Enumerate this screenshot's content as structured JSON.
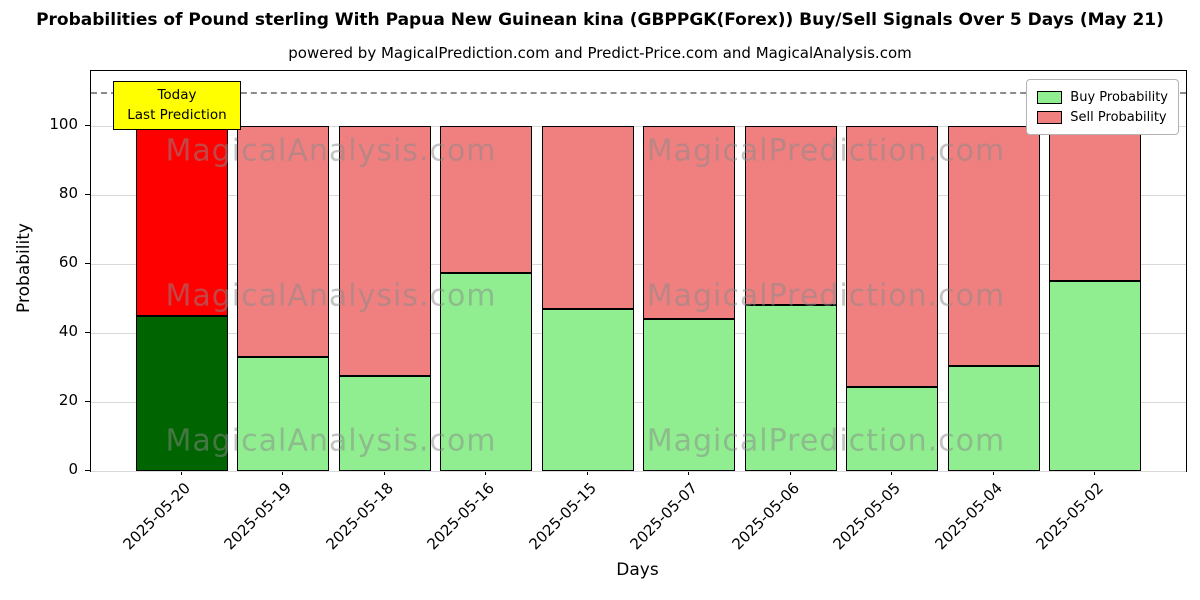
{
  "title": "Probabilities of Pound sterling With Papua New Guinean kina (GBPPGK(Forex)) Buy/Sell Signals Over 5 Days (May 21)",
  "subtitle": "powered by MagicalPrediction.com and Predict-Price.com and MagicalAnalysis.com",
  "chart_data": {
    "type": "bar",
    "stacked": true,
    "title": "Probabilities of Pound sterling With Papua New Guinean kina (GBPPGK(Forex)) Buy/Sell Signals Over 5 Days (May 21)",
    "xlabel": "Days",
    "ylabel": "Probability",
    "categories": [
      "2025-05-20",
      "2025-05-19",
      "2025-05-18",
      "2025-05-16",
      "2025-05-15",
      "2025-05-07",
      "2025-05-06",
      "2025-05-05",
      "2025-05-04",
      "2025-05-02"
    ],
    "series": [
      {
        "name": "Buy Probability",
        "values": [
          45,
          33,
          27.5,
          57.5,
          47,
          44,
          48,
          24.5,
          30.5,
          55
        ],
        "colors": [
          "#006400",
          "#90ee90",
          "#90ee90",
          "#90ee90",
          "#90ee90",
          "#90ee90",
          "#90ee90",
          "#90ee90",
          "#90ee90",
          "#90ee90"
        ]
      },
      {
        "name": "Sell Probability",
        "values": [
          55,
          67,
          72.5,
          42.5,
          53,
          56,
          52,
          75.5,
          69.5,
          45
        ],
        "colors": [
          "#ff0000",
          "#f08080",
          "#f08080",
          "#f08080",
          "#f08080",
          "#f08080",
          "#f08080",
          "#f08080",
          "#f08080",
          "#f08080"
        ]
      }
    ],
    "yticks": [
      0,
      20,
      40,
      60,
      80,
      100
    ],
    "ylim": [
      0,
      116
    ],
    "dashed_line_y": 110,
    "grid": true,
    "legend_position": "upper right",
    "legend": [
      {
        "label": "Buy Probability",
        "color": "#90ee90"
      },
      {
        "label": "Sell Probability",
        "color": "#f08080"
      }
    ],
    "annotation": {
      "lines": [
        "Today",
        "Last Prediction"
      ],
      "bg": "#ffff00"
    },
    "watermarks": [
      "MagicalAnalysis.com",
      "MagicalPrediction.com"
    ]
  }
}
